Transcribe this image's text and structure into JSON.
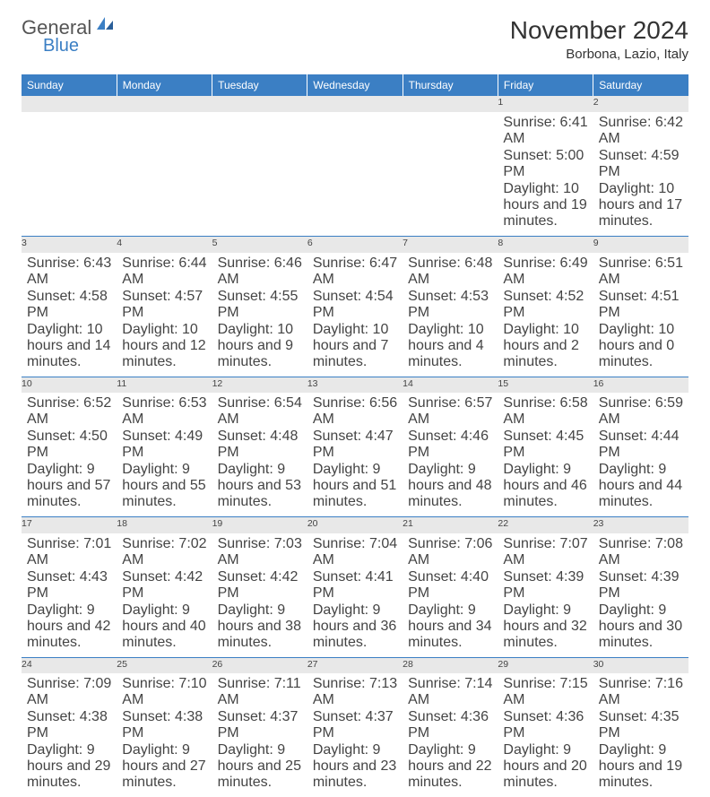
{
  "brand": {
    "name1": "General",
    "name2": "Blue"
  },
  "title": "November 2024",
  "location": "Borbona, Lazio, Italy",
  "colors": {
    "header_bg": "#3b7fc4",
    "header_text": "#ffffff",
    "daynum_bg": "#e8e8e8",
    "border": "#3b7fc4",
    "text": "#444444",
    "brand_gray": "#555555",
    "brand_blue": "#3b7fc4"
  },
  "day_headers": [
    "Sunday",
    "Monday",
    "Tuesday",
    "Wednesday",
    "Thursday",
    "Friday",
    "Saturday"
  ],
  "weeks": [
    [
      null,
      null,
      null,
      null,
      null,
      {
        "n": "1",
        "sunrise": "6:41 AM",
        "sunset": "5:00 PM",
        "daylight": "10 hours and 19 minutes."
      },
      {
        "n": "2",
        "sunrise": "6:42 AM",
        "sunset": "4:59 PM",
        "daylight": "10 hours and 17 minutes."
      }
    ],
    [
      {
        "n": "3",
        "sunrise": "6:43 AM",
        "sunset": "4:58 PM",
        "daylight": "10 hours and 14 minutes."
      },
      {
        "n": "4",
        "sunrise": "6:44 AM",
        "sunset": "4:57 PM",
        "daylight": "10 hours and 12 minutes."
      },
      {
        "n": "5",
        "sunrise": "6:46 AM",
        "sunset": "4:55 PM",
        "daylight": "10 hours and 9 minutes."
      },
      {
        "n": "6",
        "sunrise": "6:47 AM",
        "sunset": "4:54 PM",
        "daylight": "10 hours and 7 minutes."
      },
      {
        "n": "7",
        "sunrise": "6:48 AM",
        "sunset": "4:53 PM",
        "daylight": "10 hours and 4 minutes."
      },
      {
        "n": "8",
        "sunrise": "6:49 AM",
        "sunset": "4:52 PM",
        "daylight": "10 hours and 2 minutes."
      },
      {
        "n": "9",
        "sunrise": "6:51 AM",
        "sunset": "4:51 PM",
        "daylight": "10 hours and 0 minutes."
      }
    ],
    [
      {
        "n": "10",
        "sunrise": "6:52 AM",
        "sunset": "4:50 PM",
        "daylight": "9 hours and 57 minutes."
      },
      {
        "n": "11",
        "sunrise": "6:53 AM",
        "sunset": "4:49 PM",
        "daylight": "9 hours and 55 minutes."
      },
      {
        "n": "12",
        "sunrise": "6:54 AM",
        "sunset": "4:48 PM",
        "daylight": "9 hours and 53 minutes."
      },
      {
        "n": "13",
        "sunrise": "6:56 AM",
        "sunset": "4:47 PM",
        "daylight": "9 hours and 51 minutes."
      },
      {
        "n": "14",
        "sunrise": "6:57 AM",
        "sunset": "4:46 PM",
        "daylight": "9 hours and 48 minutes."
      },
      {
        "n": "15",
        "sunrise": "6:58 AM",
        "sunset": "4:45 PM",
        "daylight": "9 hours and 46 minutes."
      },
      {
        "n": "16",
        "sunrise": "6:59 AM",
        "sunset": "4:44 PM",
        "daylight": "9 hours and 44 minutes."
      }
    ],
    [
      {
        "n": "17",
        "sunrise": "7:01 AM",
        "sunset": "4:43 PM",
        "daylight": "9 hours and 42 minutes."
      },
      {
        "n": "18",
        "sunrise": "7:02 AM",
        "sunset": "4:42 PM",
        "daylight": "9 hours and 40 minutes."
      },
      {
        "n": "19",
        "sunrise": "7:03 AM",
        "sunset": "4:42 PM",
        "daylight": "9 hours and 38 minutes."
      },
      {
        "n": "20",
        "sunrise": "7:04 AM",
        "sunset": "4:41 PM",
        "daylight": "9 hours and 36 minutes."
      },
      {
        "n": "21",
        "sunrise": "7:06 AM",
        "sunset": "4:40 PM",
        "daylight": "9 hours and 34 minutes."
      },
      {
        "n": "22",
        "sunrise": "7:07 AM",
        "sunset": "4:39 PM",
        "daylight": "9 hours and 32 minutes."
      },
      {
        "n": "23",
        "sunrise": "7:08 AM",
        "sunset": "4:39 PM",
        "daylight": "9 hours and 30 minutes."
      }
    ],
    [
      {
        "n": "24",
        "sunrise": "7:09 AM",
        "sunset": "4:38 PM",
        "daylight": "9 hours and 29 minutes."
      },
      {
        "n": "25",
        "sunrise": "7:10 AM",
        "sunset": "4:38 PM",
        "daylight": "9 hours and 27 minutes."
      },
      {
        "n": "26",
        "sunrise": "7:11 AM",
        "sunset": "4:37 PM",
        "daylight": "9 hours and 25 minutes."
      },
      {
        "n": "27",
        "sunrise": "7:13 AM",
        "sunset": "4:37 PM",
        "daylight": "9 hours and 23 minutes."
      },
      {
        "n": "28",
        "sunrise": "7:14 AM",
        "sunset": "4:36 PM",
        "daylight": "9 hours and 22 minutes."
      },
      {
        "n": "29",
        "sunrise": "7:15 AM",
        "sunset": "4:36 PM",
        "daylight": "9 hours and 20 minutes."
      },
      {
        "n": "30",
        "sunrise": "7:16 AM",
        "sunset": "4:35 PM",
        "daylight": "9 hours and 19 minutes."
      }
    ]
  ],
  "labels": {
    "sunrise": "Sunrise: ",
    "sunset": "Sunset: ",
    "daylight": "Daylight: "
  }
}
